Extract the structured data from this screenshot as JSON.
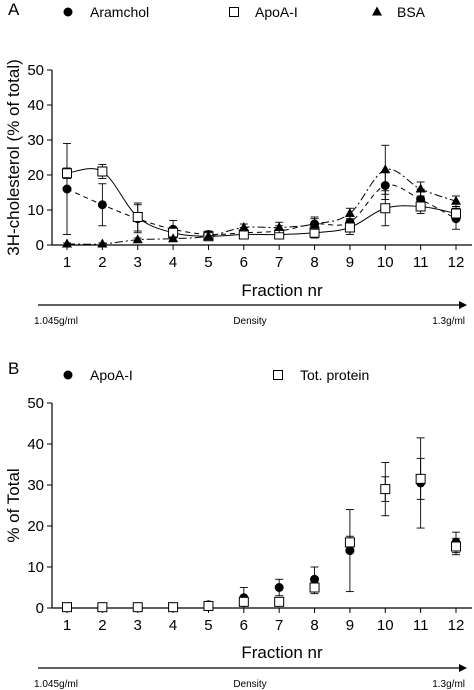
{
  "chart_data": [
    {
      "panel": "A",
      "type": "line",
      "xlabel": "Fraction nr",
      "ylabel": "3H-cholesterol (% of total)",
      "categories": [
        "1",
        "2",
        "3",
        "4",
        "5",
        "6",
        "7",
        "8",
        "9",
        "10",
        "11",
        "12"
      ],
      "ylim": [
        0,
        50
      ],
      "yticks": [
        "0",
        "10",
        "20",
        "30",
        "40",
        "50"
      ],
      "density": {
        "left": "1.045g/ml",
        "center": "Density",
        "right": "1.3g/ml"
      },
      "legend_placement": "top",
      "series": [
        {
          "name": "Aramchol",
          "marker": "filled-circle",
          "line": "dashed",
          "values": [
            16,
            11.5,
            7.5,
            4.5,
            3,
            3.5,
            4,
            6,
            6.5,
            17,
            13,
            7.5
          ],
          "errors": [
            13,
            6,
            4,
            2.5,
            1,
            1.5,
            1.5,
            2,
            2,
            4,
            3,
            3
          ]
        },
        {
          "name": "ApoA-I",
          "marker": "open-square",
          "line": "solid",
          "values": [
            20.5,
            21,
            8,
            3.5,
            2.5,
            3,
            3,
            3.5,
            5,
            10.5,
            11,
            9
          ],
          "errors": [
            1.5,
            2,
            4,
            1.5,
            1,
            1,
            1,
            1.5,
            2,
            5,
            2,
            2
          ]
        },
        {
          "name": "BSA",
          "marker": "filled-triangle",
          "line": "dash-dot",
          "values": [
            0.3,
            0.3,
            1.5,
            1.8,
            2.5,
            5,
            5,
            6,
            9,
            21.5,
            16,
            12.5
          ],
          "errors": [
            0.3,
            0.3,
            0.5,
            0.5,
            1,
            1,
            1.5,
            1.5,
            1.5,
            7,
            2,
            1.5
          ]
        }
      ]
    },
    {
      "panel": "B",
      "type": "scatter",
      "xlabel": "Fraction nr",
      "ylabel": "% of Total",
      "categories": [
        "1",
        "2",
        "3",
        "4",
        "5",
        "6",
        "7",
        "8",
        "9",
        "10",
        "11",
        "12"
      ],
      "ylim": [
        0,
        50
      ],
      "yticks": [
        "0",
        "10",
        "20",
        "30",
        "40",
        "50"
      ],
      "density": {
        "left": "1.045g/ml",
        "center": "Density",
        "right": "1.3g/ml"
      },
      "legend_placement": "top",
      "series": [
        {
          "name": "ApoA-I",
          "marker": "filled-circle",
          "values": [
            0.3,
            0.3,
            0.3,
            0.3,
            0.8,
            2.5,
            5,
            7,
            14,
            29,
            30.5,
            16
          ],
          "errors": [
            0.5,
            0.5,
            0.5,
            0.5,
            0.8,
            2.5,
            2,
            3,
            10,
            6.5,
            11,
            2.5
          ]
        },
        {
          "name": "Tot. protein",
          "marker": "open-square",
          "values": [
            0.2,
            0.2,
            0.2,
            0.2,
            0.5,
            1.5,
            1.5,
            5,
            16,
            29,
            31.5,
            15
          ],
          "errors": [
            0.3,
            0.3,
            0.3,
            0.3,
            0.5,
            1,
            1,
            1.5,
            1.5,
            3,
            5,
            2
          ]
        }
      ]
    }
  ]
}
